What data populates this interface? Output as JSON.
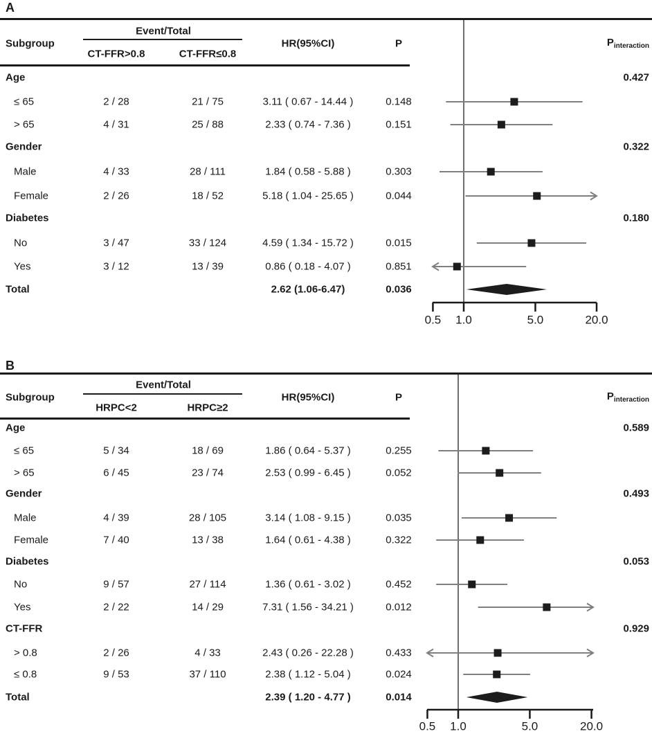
{
  "colors": {
    "ci_line": "#7f7f7f",
    "marker": "#1c1c1c",
    "reference_line": "#4a4a4a",
    "rule": "#1a1a1a"
  },
  "panels": [
    {
      "label": "A",
      "header": {
        "subgroup": "Subgroup",
        "event_total": "Event/Total",
        "col1": "CT-FFR>0.8",
        "col2": "CT-FFR≤0.8",
        "hr": "HR(95%CI)",
        "p": "P",
        "p_interaction_main": "P",
        "p_interaction_sub": "interaction"
      },
      "axis": {
        "ticks": [
          "0.5",
          "1.0",
          "5.0",
          "20.0"
        ],
        "tick_values": [
          0.5,
          1.0,
          5.0,
          20.0
        ],
        "reference_value": 1.0
      },
      "rows": [
        {
          "type": "group",
          "label": "Age",
          "p_interaction": "0.427"
        },
        {
          "type": "item",
          "label": "≤ 65",
          "col1": "2 / 28",
          "col2": "21 / 75",
          "hr_text": "3.11 ( 0.67 - 14.44 )",
          "p": "0.148",
          "hr": 3.11,
          "lo": 0.67,
          "hi": 14.44
        },
        {
          "type": "item",
          "label": "> 65",
          "col1": "4 / 31",
          "col2": "25 / 88",
          "hr_text": "2.33 ( 0.74 - 7.36 )",
          "p": "0.151",
          "hr": 2.33,
          "lo": 0.74,
          "hi": 7.36
        },
        {
          "type": "group",
          "label": "Gender",
          "p_interaction": "0.322"
        },
        {
          "type": "item",
          "label": "Male",
          "col1": "4 / 33",
          "col2": "28 / 111",
          "hr_text": "1.84 ( 0.58 - 5.88 )",
          "p": "0.303",
          "hr": 1.84,
          "lo": 0.58,
          "hi": 5.88
        },
        {
          "type": "item",
          "label": "Female",
          "col1": "2 / 26",
          "col2": "18 / 52",
          "hr_text": "5.18 ( 1.04 - 25.65 )",
          "p": "0.044",
          "hr": 5.18,
          "lo": 1.04,
          "hi": 25.65
        },
        {
          "type": "group",
          "label": "Diabetes",
          "p_interaction": "0.180"
        },
        {
          "type": "item",
          "label": "No",
          "col1": "3 / 47",
          "col2": "33 / 124",
          "hr_text": "4.59 ( 1.34 - 15.72 )",
          "p": "0.015",
          "hr": 4.59,
          "lo": 1.34,
          "hi": 15.72
        },
        {
          "type": "item",
          "label": "Yes",
          "col1": "3 / 12",
          "col2": "13 / 39",
          "hr_text": "0.86 ( 0.18 - 4.07 )",
          "p": "0.851",
          "hr": 0.86,
          "lo": 0.18,
          "hi": 4.07
        },
        {
          "type": "total",
          "label": "Total",
          "hr_text": "2.62 (1.06-6.47)",
          "p": "0.036",
          "hr": 2.62,
          "lo": 1.06,
          "hi": 6.47
        }
      ]
    },
    {
      "label": "B",
      "header": {
        "subgroup": "Subgroup",
        "event_total": "Event/Total",
        "col1": "HRPC<2",
        "col2": "HRPC≥2",
        "hr": "HR(95%CI)",
        "p": "P",
        "p_interaction_main": "P",
        "p_interaction_sub": "interaction"
      },
      "axis": {
        "ticks": [
          "0.5",
          "1.0",
          "5.0",
          "20.0"
        ],
        "tick_values": [
          0.5,
          1.0,
          5.0,
          20.0
        ],
        "reference_value": 1.0
      },
      "rows": [
        {
          "type": "group",
          "label": "Age",
          "p_interaction": "0.589"
        },
        {
          "type": "item",
          "label": "≤ 65",
          "col1": "5 / 34",
          "col2": "18 / 69",
          "hr_text": "1.86 ( 0.64 - 5.37 )",
          "p": "0.255",
          "hr": 1.86,
          "lo": 0.64,
          "hi": 5.37
        },
        {
          "type": "item",
          "label": "> 65",
          "col1": "6 / 45",
          "col2": "23 / 74",
          "hr_text": "2.53 ( 0.99 - 6.45 )",
          "p": "0.052",
          "hr": 2.53,
          "lo": 0.99,
          "hi": 6.45
        },
        {
          "type": "group",
          "label": "Gender",
          "p_interaction": "0.493"
        },
        {
          "type": "item",
          "label": "Male",
          "col1": "4 / 39",
          "col2": "28 / 105",
          "hr_text": "3.14 ( 1.08 - 9.15 )",
          "p": "0.035",
          "hr": 3.14,
          "lo": 1.08,
          "hi": 9.15
        },
        {
          "type": "item",
          "label": "Female",
          "col1": "7 / 40",
          "col2": "13 / 38",
          "hr_text": "1.64 ( 0.61 - 4.38 )",
          "p": "0.322",
          "hr": 1.64,
          "lo": 0.61,
          "hi": 4.38
        },
        {
          "type": "group",
          "label": "Diabetes",
          "p_interaction": "0.053"
        },
        {
          "type": "item",
          "label": "No",
          "col1": "9 / 57",
          "col2": "27 / 114",
          "hr_text": "1.36 ( 0.61 - 3.02 )",
          "p": "0.452",
          "hr": 1.36,
          "lo": 0.61,
          "hi": 3.02
        },
        {
          "type": "item",
          "label": "Yes",
          "col1": "2 / 22",
          "col2": "14 / 29",
          "hr_text": "7.31 ( 1.56 - 34.21 )",
          "p": "0.012",
          "hr": 7.31,
          "lo": 1.56,
          "hi": 34.21
        },
        {
          "type": "group",
          "label": "CT-FFR",
          "p_interaction": "0.929"
        },
        {
          "type": "item",
          "label": "> 0.8",
          "col1": "2 / 26",
          "col2": "4 / 33",
          "hr_text": "2.43 ( 0.26 - 22.28 )",
          "p": "0.433",
          "hr": 2.43,
          "lo": 0.26,
          "hi": 22.28
        },
        {
          "type": "item",
          "label": "≤ 0.8",
          "col1": "9 / 53",
          "col2": "37 / 110",
          "hr_text": "2.38 ( 1.12 - 5.04 )",
          "p": "0.024",
          "hr": 2.38,
          "lo": 1.12,
          "hi": 5.04
        },
        {
          "type": "total",
          "label": "Total",
          "hr_text": "2.39 ( 1.20 - 4.77 )",
          "p": "0.014",
          "hr": 2.39,
          "lo": 1.2,
          "hi": 4.77
        }
      ]
    }
  ],
  "chart_data": [
    {
      "type": "scatter",
      "title": "A",
      "subtitle": "Forest plot of HR(95%CI) by subgroup, CT-FFR>0.8 vs CT-FFR≤0.8",
      "xscale": "log",
      "xlim": [
        0.5,
        20.0
      ],
      "x_ticks": [
        0.5,
        1.0,
        5.0,
        20.0
      ],
      "reference_line": 1.0,
      "points": [
        {
          "group": "Age",
          "subgroup": "≤ 65",
          "events": [
            "2 / 28",
            "21 / 75"
          ],
          "hr": 3.11,
          "ci": [
            0.67,
            14.44
          ],
          "p": 0.148
        },
        {
          "group": "Age",
          "subgroup": "> 65",
          "events": [
            "4 / 31",
            "25 / 88"
          ],
          "hr": 2.33,
          "ci": [
            0.74,
            7.36
          ],
          "p": 0.151
        },
        {
          "group": "Gender",
          "subgroup": "Male",
          "events": [
            "4 / 33",
            "28 / 111"
          ],
          "hr": 1.84,
          "ci": [
            0.58,
            5.88
          ],
          "p": 0.303
        },
        {
          "group": "Gender",
          "subgroup": "Female",
          "events": [
            "2 / 26",
            "18 / 52"
          ],
          "hr": 5.18,
          "ci": [
            1.04,
            25.65
          ],
          "p": 0.044
        },
        {
          "group": "Diabetes",
          "subgroup": "No",
          "events": [
            "3 / 47",
            "33 / 124"
          ],
          "hr": 4.59,
          "ci": [
            1.34,
            15.72
          ],
          "p": 0.015
        },
        {
          "group": "Diabetes",
          "subgroup": "Yes",
          "events": [
            "3 / 12",
            "13 / 39"
          ],
          "hr": 0.86,
          "ci": [
            0.18,
            4.07
          ],
          "p": 0.851
        }
      ],
      "overall": {
        "subgroup": "Total",
        "hr": 2.62,
        "ci": [
          1.06,
          6.47
        ],
        "p": 0.036
      },
      "p_interaction": {
        "Age": 0.427,
        "Gender": 0.322,
        "Diabetes": 0.18
      }
    },
    {
      "type": "scatter",
      "title": "B",
      "subtitle": "Forest plot of HR(95%CI) by subgroup, HRPC<2 vs HRPC≥2",
      "xscale": "log",
      "xlim": [
        0.5,
        20.0
      ],
      "x_ticks": [
        0.5,
        1.0,
        5.0,
        20.0
      ],
      "reference_line": 1.0,
      "points": [
        {
          "group": "Age",
          "subgroup": "≤ 65",
          "events": [
            "5 / 34",
            "18 / 69"
          ],
          "hr": 1.86,
          "ci": [
            0.64,
            5.37
          ],
          "p": 0.255
        },
        {
          "group": "Age",
          "subgroup": "> 65",
          "events": [
            "6 / 45",
            "23 / 74"
          ],
          "hr": 2.53,
          "ci": [
            0.99,
            6.45
          ],
          "p": 0.052
        },
        {
          "group": "Gender",
          "subgroup": "Male",
          "events": [
            "4 / 39",
            "28 / 105"
          ],
          "hr": 3.14,
          "ci": [
            1.08,
            9.15
          ],
          "p": 0.035
        },
        {
          "group": "Gender",
          "subgroup": "Female",
          "events": [
            "7 / 40",
            "13 / 38"
          ],
          "hr": 1.64,
          "ci": [
            0.61,
            4.38
          ],
          "p": 0.322
        },
        {
          "group": "Diabetes",
          "subgroup": "No",
          "events": [
            "9 / 57",
            "27 / 114"
          ],
          "hr": 1.36,
          "ci": [
            0.61,
            3.02
          ],
          "p": 0.452
        },
        {
          "group": "Diabetes",
          "subgroup": "Yes",
          "events": [
            "2 / 22",
            "14 / 29"
          ],
          "hr": 7.31,
          "ci": [
            1.56,
            34.21
          ],
          "p": 0.012
        },
        {
          "group": "CT-FFR",
          "subgroup": "> 0.8",
          "events": [
            "2 / 26",
            "4 / 33"
          ],
          "hr": 2.43,
          "ci": [
            0.26,
            22.28
          ],
          "p": 0.433
        },
        {
          "group": "CT-FFR",
          "subgroup": "≤ 0.8",
          "events": [
            "9 / 53",
            "37 / 110"
          ],
          "hr": 2.38,
          "ci": [
            1.12,
            5.04
          ],
          "p": 0.024
        }
      ],
      "overall": {
        "subgroup": "Total",
        "hr": 2.39,
        "ci": [
          1.2,
          4.77
        ],
        "p": 0.014
      },
      "p_interaction": {
        "Age": 0.589,
        "Gender": 0.493,
        "Diabetes": 0.053,
        "CT-FFR": 0.929
      }
    }
  ]
}
